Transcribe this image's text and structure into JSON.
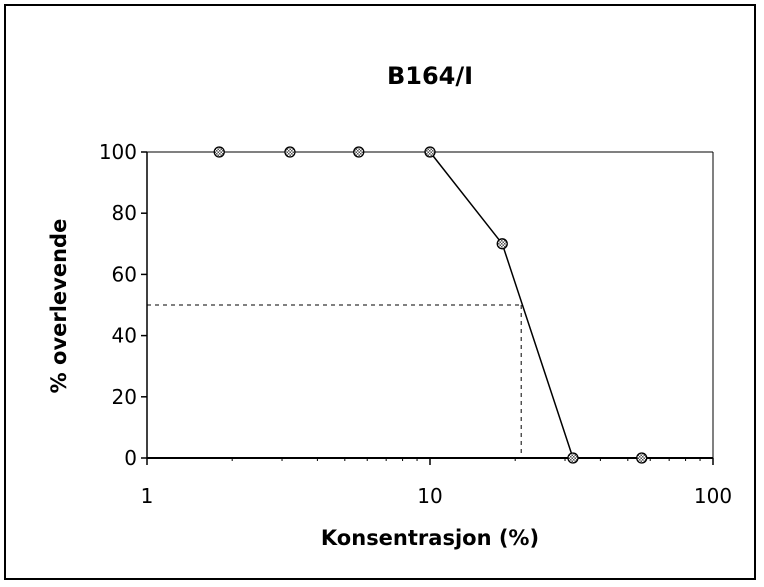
{
  "chart_data": {
    "type": "line",
    "title": "B164/I",
    "xlabel": "Konsentrasjon (%)",
    "ylabel": "% overlevende",
    "xscale": "log",
    "xlim": [
      1,
      100
    ],
    "ylim": [
      0,
      100
    ],
    "xticks": [
      1,
      10,
      100
    ],
    "xtick_labels": [
      "1",
      "10",
      "100"
    ],
    "yticks": [
      0,
      20,
      40,
      60,
      80,
      100
    ],
    "ytick_labels": [
      "0",
      "20",
      "40",
      "60",
      "80",
      "100"
    ],
    "grid": false,
    "legend": "none",
    "series": [
      {
        "x": [
          1.8,
          3.2,
          5.6,
          10,
          18,
          32,
          56
        ],
        "y": [
          100,
          100,
          100,
          100,
          70,
          0,
          0
        ],
        "marker": "circle-hatched",
        "connected_from": 10
      }
    ],
    "reference": {
      "y": 50,
      "x": 21
    }
  }
}
